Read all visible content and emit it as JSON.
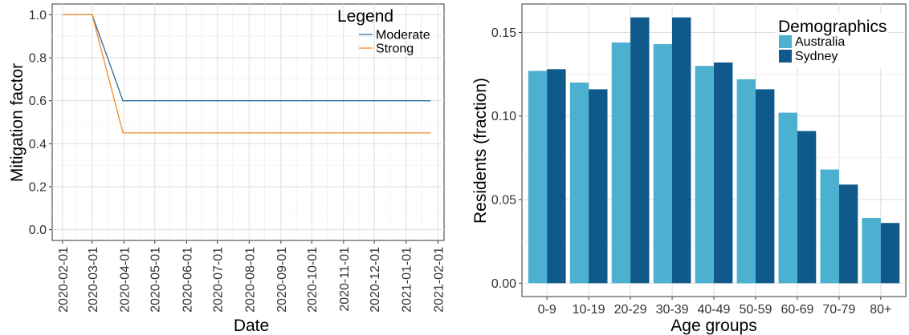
{
  "chart_data": [
    {
      "type": "line",
      "title": "",
      "xlabel": "Date",
      "ylabel": "Mitigation factor",
      "x_ticks": [
        "2020-02-01",
        "2020-03-01",
        "2020-04-01",
        "2020-05-01",
        "2020-06-01",
        "2020-07-01",
        "2020-08-01",
        "2020-09-01",
        "2020-10-01",
        "2020-11-01",
        "2020-12-01",
        "2021-01-01",
        "2021-02-01"
      ],
      "y_ticks": [
        "0.0",
        "0.2",
        "0.4",
        "0.6",
        "0.8",
        "1.0"
      ],
      "ylim": [
        -0.05,
        1.05
      ],
      "xlim": [
        "2020-01-22",
        "2021-02-07"
      ],
      "grid": true,
      "legend": {
        "title": "Legend",
        "placement": "top-right"
      },
      "series": [
        {
          "name": "Moderate",
          "color": "#2c6c9c",
          "points": [
            [
              "2020-02-01",
              1.0
            ],
            [
              "2020-03-01",
              1.0
            ],
            [
              "2020-03-31",
              0.6
            ],
            [
              "2021-01-25",
              0.6
            ]
          ]
        },
        {
          "name": "Strong",
          "color": "#f08a24",
          "points": [
            [
              "2020-02-01",
              1.0
            ],
            [
              "2020-03-01",
              1.0
            ],
            [
              "2020-03-31",
              0.45
            ],
            [
              "2021-01-25",
              0.45
            ]
          ]
        }
      ]
    },
    {
      "type": "bar",
      "title": "",
      "xlabel": "Age groups",
      "ylabel": "Residents (fraction)",
      "categories": [
        "0-9",
        "10-19",
        "20-29",
        "30-39",
        "40-49",
        "50-59",
        "60-69",
        "70-79",
        "80+"
      ],
      "y_ticks": [
        "0.00",
        "0.05",
        "0.10",
        "0.15"
      ],
      "ylim": [
        -0.008,
        0.167
      ],
      "grid": true,
      "legend": {
        "title": "Demographics",
        "placement": "top-right"
      },
      "series": [
        {
          "name": "Australia",
          "color": "#4cb0d0",
          "values": [
            0.127,
            0.12,
            0.144,
            0.143,
            0.13,
            0.122,
            0.102,
            0.068,
            0.039
          ]
        },
        {
          "name": "Sydney",
          "color": "#0f5a8a",
          "values": [
            0.128,
            0.116,
            0.159,
            0.159,
            0.132,
            0.116,
            0.091,
            0.059,
            0.036
          ]
        }
      ]
    }
  ]
}
